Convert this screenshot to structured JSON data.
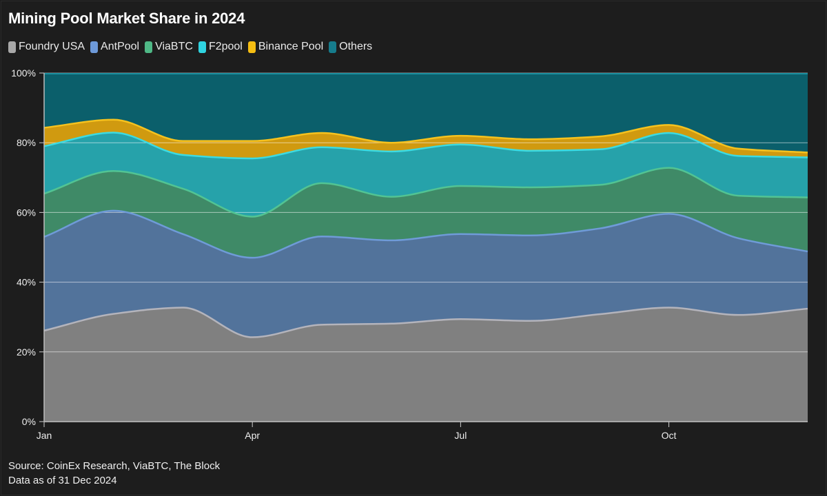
{
  "title": "Mining Pool Market Share in 2024",
  "footer": {
    "source": "Source: CoinEx Research, ViaBTC, The Block",
    "note": "Data as of 31 Dec 2024"
  },
  "chart_data": {
    "type": "area",
    "stacked": true,
    "normalized": true,
    "title": "Mining Pool Market Share in 2024",
    "xlabel": "",
    "ylabel": "",
    "x": [
      "Jan",
      "Feb",
      "Mar",
      "Apr",
      "May",
      "Jun",
      "Jul",
      "Aug",
      "Sep",
      "Oct",
      "Nov",
      "Dec"
    ],
    "x_ticks": [
      {
        "label": "Jan",
        "index": 0
      },
      {
        "label": "Apr",
        "index": 3
      },
      {
        "label": "Jul",
        "index": 6
      },
      {
        "label": "Oct",
        "index": 9
      }
    ],
    "y_ticks": [
      "0%",
      "20%",
      "40%",
      "60%",
      "80%",
      "100%"
    ],
    "ylim": [
      0,
      100
    ],
    "y_unit": "%",
    "grid": true,
    "legend_position": "top-left",
    "series": [
      {
        "name": "Foundry USA",
        "color": "#808080",
        "line": "#b4b4bc",
        "swatch": "#a8a8a8",
        "values": [
          26.1,
          30.9,
          32.7,
          24.2,
          27.8,
          28.1,
          29.4,
          28.9,
          30.8,
          32.7,
          30.6,
          32.4
        ]
      },
      {
        "name": "AntPool",
        "color": "#52739b",
        "line": "#6f9bd8",
        "swatch": "#6d99d8",
        "values": [
          26.9,
          29.6,
          21.1,
          22.8,
          25.3,
          23.9,
          24.4,
          24.5,
          24.6,
          26.9,
          22.0,
          16.4
        ]
      },
      {
        "name": "ViaBTC",
        "color": "#3f8a67",
        "line": "#52c493",
        "swatch": "#4fb886",
        "values": [
          12.4,
          11.4,
          13.0,
          11.8,
          15.3,
          12.5,
          13.8,
          13.8,
          12.5,
          13.2,
          12.2,
          15.5
        ]
      },
      {
        "name": "F2pool",
        "color": "#26a2aa",
        "line": "#3cdbe2",
        "swatch": "#2fd3e0",
        "values": [
          13.6,
          11.0,
          9.7,
          16.7,
          10.3,
          13.0,
          11.9,
          10.5,
          10.2,
          10.0,
          11.4,
          11.5
        ]
      },
      {
        "name": "Binance Pool",
        "color": "#d09a10",
        "line": "#f6c21e",
        "swatch": "#f5bd12",
        "values": [
          5.3,
          3.7,
          4.0,
          5.0,
          4.1,
          2.5,
          2.5,
          3.3,
          3.7,
          2.3,
          2.1,
          1.4
        ]
      },
      {
        "name": "Others",
        "color": "#0b5f6b",
        "line": "#1a8fa0",
        "swatch": "#167c8c",
        "values": [
          15.7,
          13.4,
          19.5,
          19.5,
          17.2,
          20.0,
          18.0,
          19.0,
          18.2,
          14.9,
          21.7,
          22.8
        ]
      }
    ]
  }
}
